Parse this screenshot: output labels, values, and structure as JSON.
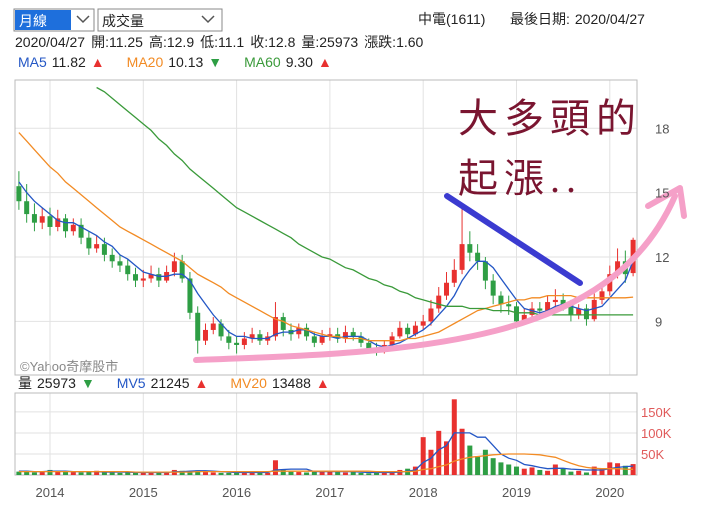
{
  "header": {
    "period_select": "月線",
    "indicator_select": "成交量",
    "stock": "中電(1611)",
    "last_date_label": "最後日期:",
    "last_date": "2020/04/27"
  },
  "info": {
    "date": "2020/04/27",
    "items": [
      {
        "label": "開:",
        "value": 11.25
      },
      {
        "label": "高:",
        "value": 12.9
      },
      {
        "label": "低:",
        "value": 11.1
      },
      {
        "label": "收:",
        "value": 12.8
      },
      {
        "label": "量:",
        "value": 25973
      },
      {
        "label": "漲跌:",
        "value": 1.6,
        "value_label": "1.60"
      }
    ]
  },
  "annotations": {
    "line1": "大多頭的",
    "line2": "起漲..",
    "watermark": "©Yahoo奇摩股市"
  },
  "chart_data": [
    {
      "type": "candlestick",
      "up_color": "#e8312f",
      "down_color": "#2e9e44",
      "ylim": [
        6.5,
        20.25
      ],
      "yticks": [
        9,
        12,
        15,
        18
      ],
      "grid": true,
      "open": [
        15.3,
        14.6,
        14.0,
        13.6,
        13.9,
        13.4,
        13.8,
        13.2,
        13.5,
        12.9,
        12.4,
        12.6,
        12.1,
        11.8,
        11.6,
        11.2,
        10.9,
        11.0,
        11.2,
        10.9,
        11.3,
        11.8,
        11.0,
        9.4,
        8.1,
        8.6,
        8.9,
        8.3,
        8.0,
        7.9,
        8.2,
        8.4,
        8.1,
        8.3,
        9.2,
        8.6,
        8.4,
        8.7,
        8.3,
        8.0,
        8.3,
        8.4,
        8.2,
        8.5,
        8.3,
        8.0,
        7.7,
        7.6,
        7.9,
        8.3,
        8.7,
        8.4,
        8.8,
        9.0,
        9.6,
        10.2,
        10.8,
        11.4,
        12.6,
        12.2,
        11.8,
        10.9,
        10.2,
        9.8,
        9.7,
        9.0,
        9.3,
        9.6,
        9.5,
        9.9,
        10.0,
        9.8,
        9.3,
        9.6,
        9.1,
        10.0,
        10.4,
        11.2,
        11.8,
        11.25
      ],
      "high": [
        16.0,
        15.4,
        14.5,
        14.3,
        14.3,
        14.2,
        14.0,
        13.8,
        13.8,
        13.2,
        13.0,
        12.9,
        12.4,
        12.1,
        11.9,
        11.5,
        11.4,
        11.6,
        11.5,
        11.6,
        12.2,
        12.1,
        11.3,
        9.7,
        8.9,
        9.2,
        9.1,
        8.6,
        8.3,
        8.5,
        8.7,
        8.6,
        8.5,
        9.9,
        9.4,
        8.9,
        8.9,
        8.9,
        8.5,
        8.6,
        8.7,
        8.7,
        8.8,
        8.7,
        8.5,
        8.2,
        8.0,
        8.1,
        8.5,
        9.0,
        8.9,
        9.0,
        9.3,
        10.0,
        10.6,
        11.3,
        11.9,
        14.5,
        13.2,
        12.6,
        12.0,
        11.2,
        10.4,
        10.2,
        9.9,
        9.6,
        9.9,
        9.9,
        10.2,
        10.5,
        10.3,
        10.0,
        9.8,
        9.8,
        10.3,
        10.8,
        11.6,
        12.4,
        12.3,
        12.9
      ],
      "low": [
        14.2,
        13.6,
        13.2,
        13.3,
        13.0,
        13.2,
        12.9,
        13.0,
        12.6,
        12.1,
        12.2,
        11.8,
        11.5,
        11.3,
        10.9,
        10.6,
        10.6,
        10.8,
        10.6,
        10.8,
        11.1,
        10.8,
        9.1,
        7.5,
        7.9,
        8.4,
        8.1,
        7.7,
        7.5,
        7.7,
        8.0,
        7.9,
        7.9,
        8.1,
        8.3,
        8.1,
        8.2,
        8.1,
        7.8,
        7.9,
        8.1,
        8.0,
        8.0,
        8.1,
        7.8,
        7.5,
        7.4,
        7.5,
        7.8,
        8.2,
        8.2,
        8.3,
        8.6,
        8.8,
        9.4,
        10.0,
        10.6,
        11.2,
        11.8,
        11.4,
        10.5,
        9.8,
        9.4,
        9.3,
        8.7,
        8.9,
        9.1,
        9.2,
        9.3,
        9.6,
        9.5,
        9.0,
        9.1,
        8.8,
        9.0,
        9.8,
        10.2,
        11.0,
        10.8,
        11.1
      ],
      "close": [
        14.6,
        14.0,
        13.6,
        13.9,
        13.4,
        13.8,
        13.2,
        13.5,
        12.9,
        12.4,
        12.6,
        12.1,
        11.8,
        11.6,
        11.2,
        10.9,
        11.0,
        11.2,
        10.9,
        11.3,
        11.8,
        11.0,
        9.4,
        8.1,
        8.6,
        8.9,
        8.3,
        8.0,
        7.9,
        8.2,
        8.4,
        8.1,
        8.3,
        9.2,
        8.6,
        8.4,
        8.7,
        8.3,
        8.0,
        8.3,
        8.4,
        8.2,
        8.5,
        8.3,
        8.0,
        7.7,
        7.6,
        7.9,
        8.3,
        8.7,
        8.4,
        8.8,
        9.0,
        9.6,
        10.2,
        10.8,
        11.4,
        12.6,
        12.2,
        11.8,
        10.9,
        10.2,
        9.8,
        9.7,
        9.0,
        9.3,
        9.6,
        9.5,
        9.9,
        10.0,
        9.8,
        9.3,
        9.6,
        9.1,
        10.0,
        10.4,
        11.2,
        11.8,
        11.2,
        12.8
      ],
      "series": [
        {
          "name": "MA5",
          "color": "#2457c5",
          "arrow": "▲",
          "arrow_color": "#e8312f",
          "values": [
            15.5,
            15.0,
            14.6,
            14.3,
            14.0,
            13.7,
            13.6,
            13.6,
            13.4,
            13.2,
            13.0,
            12.7,
            12.5,
            12.1,
            11.9,
            11.6,
            11.3,
            11.2,
            11.1,
            11.1,
            11.2,
            11.2,
            10.9,
            10.3,
            9.8,
            9.3,
            8.9,
            8.5,
            8.3,
            8.3,
            8.2,
            8.2,
            8.2,
            8.4,
            8.5,
            8.5,
            8.6,
            8.6,
            8.4,
            8.3,
            8.3,
            8.2,
            8.3,
            8.3,
            8.3,
            8.1,
            7.9,
            7.8,
            7.9,
            8.0,
            8.2,
            8.4,
            8.6,
            8.9,
            9.3,
            9.7,
            10.2,
            10.9,
            11.4,
            11.8,
            11.8,
            11.5,
            11.0,
            10.5,
            10.0,
            9.6,
            9.5,
            9.4,
            9.5,
            9.7,
            9.8,
            9.7,
            9.6,
            9.5,
            9.6,
            9.7,
            10.1,
            10.5,
            10.9,
            11.82
          ]
        },
        {
          "name": "MA20",
          "color": "#f28b24",
          "arrow": "▼",
          "arrow_color": "#2e9e44",
          "values": [
            17.8,
            17.4,
            17.0,
            16.6,
            16.2,
            15.9,
            15.5,
            15.2,
            14.9,
            14.6,
            14.3,
            14.0,
            13.7,
            13.4,
            13.2,
            13.0,
            12.8,
            12.6,
            12.4,
            12.2,
            12.0,
            11.8,
            11.5,
            11.2,
            11.0,
            10.8,
            10.6,
            10.3,
            10.1,
            9.9,
            9.7,
            9.5,
            9.3,
            9.1,
            9.0,
            8.8,
            8.7,
            8.6,
            8.5,
            8.4,
            8.3,
            8.3,
            8.2,
            8.2,
            8.2,
            8.1,
            8.1,
            8.1,
            8.1,
            8.1,
            8.2,
            8.2,
            8.3,
            8.4,
            8.5,
            8.7,
            8.9,
            9.1,
            9.3,
            9.5,
            9.6,
            9.7,
            9.8,
            9.9,
            10.0,
            10.0,
            10.1,
            10.1,
            10.2,
            10.2,
            10.2,
            10.2,
            10.1,
            10.1,
            10.1,
            10.1,
            10.1,
            10.1,
            10.1,
            10.13
          ]
        },
        {
          "name": "MA60",
          "color": "#3a9a3a",
          "arrow": "▲",
          "arrow_color": "#e8312f",
          "last_label": "9.30",
          "values": [
            null,
            null,
            null,
            null,
            null,
            null,
            null,
            null,
            null,
            null,
            19.9,
            19.7,
            19.4,
            19.1,
            18.8,
            18.5,
            18.2,
            17.9,
            17.5,
            17.2,
            16.8,
            16.5,
            16.1,
            15.8,
            15.5,
            15.2,
            14.9,
            14.6,
            14.3,
            14.1,
            13.9,
            13.7,
            13.5,
            13.3,
            13.1,
            12.9,
            12.6,
            12.4,
            12.2,
            12.0,
            11.9,
            11.7,
            11.5,
            11.4,
            11.2,
            11.0,
            10.9,
            10.7,
            10.6,
            10.4,
            10.3,
            10.1,
            10.0,
            9.9,
            9.8,
            9.7,
            9.7,
            9.7,
            9.6,
            9.6,
            9.6,
            9.5,
            9.5,
            9.5,
            9.4,
            9.4,
            9.4,
            9.3,
            9.3,
            9.3,
            9.3,
            9.3,
            9.3,
            9.3,
            9.3,
            9.3,
            9.3,
            9.3,
            9.3,
            9.3
          ]
        }
      ]
    },
    {
      "type": "bar",
      "ylim": [
        0,
        195000
      ],
      "yticks": [
        {
          "value": 50000,
          "label": "50K"
        },
        {
          "value": 100000,
          "label": "100K"
        },
        {
          "value": 150000,
          "label": "150K"
        }
      ],
      "tick_color": "#e05a5a",
      "grid": true,
      "categories": [
        null,
        null,
        null,
        null,
        "2014",
        null,
        null,
        null,
        null,
        null,
        null,
        null,
        null,
        null,
        null,
        null,
        "2015",
        null,
        null,
        null,
        null,
        null,
        null,
        null,
        null,
        null,
        null,
        null,
        "2016",
        null,
        null,
        null,
        null,
        null,
        null,
        null,
        null,
        null,
        null,
        null,
        "2017",
        null,
        null,
        null,
        null,
        null,
        null,
        null,
        null,
        null,
        null,
        null,
        "2018",
        null,
        null,
        null,
        null,
        null,
        null,
        null,
        null,
        null,
        null,
        null,
        "2019",
        null,
        null,
        null,
        null,
        null,
        null,
        null,
        null,
        null,
        null,
        null,
        "2020",
        null,
        null,
        null
      ],
      "series": [
        {
          "name": "量",
          "arrow": "▼",
          "arrow_color": "#2e9e44",
          "values": [
            8000,
            10000,
            6000,
            7000,
            12000,
            9000,
            8000,
            7000,
            6000,
            8000,
            10000,
            6000,
            7000,
            5000,
            6000,
            5000,
            6000,
            5000,
            7000,
            8000,
            12000,
            10000,
            9000,
            11000,
            7000,
            6000,
            5000,
            5000,
            6000,
            7000,
            8000,
            6000,
            5000,
            35000,
            12000,
            8000,
            7000,
            6000,
            8000,
            10000,
            9000,
            7000,
            6000,
            8000,
            5000,
            4000,
            5000,
            6000,
            8000,
            12000,
            15000,
            20000,
            90000,
            60000,
            105000,
            80000,
            180000,
            110000,
            70000,
            45000,
            60000,
            40000,
            30000,
            25000,
            20000,
            15000,
            18000,
            12000,
            10000,
            25000,
            15000,
            8000,
            10000,
            6000,
            20000,
            15000,
            30000,
            28000,
            22000,
            25973
          ]
        },
        {
          "name": "MV5",
          "color": "#2457c5",
          "arrow": "▲",
          "arrow_color": "#e8312f",
          "values": [
            9000,
            9000,
            8000,
            8000,
            9000,
            9000,
            9000,
            8000,
            8000,
            8000,
            8000,
            7000,
            7000,
            7000,
            7000,
            6000,
            6000,
            6000,
            6000,
            6000,
            8000,
            8000,
            9000,
            10000,
            10000,
            9000,
            8000,
            7000,
            6000,
            6000,
            6000,
            6000,
            6000,
            12000,
            13000,
            14000,
            14000,
            14000,
            8000,
            8000,
            8000,
            8000,
            8000,
            8000,
            7000,
            6000,
            6000,
            6000,
            6000,
            7000,
            9000,
            12000,
            30000,
            40000,
            60000,
            70000,
            100000,
            100000,
            100000,
            90000,
            90000,
            70000,
            50000,
            40000,
            35000,
            25000,
            22000,
            18000,
            15000,
            16000,
            16000,
            14000,
            13000,
            12000,
            12000,
            12000,
            15000,
            18000,
            20000,
            21245
          ]
        },
        {
          "name": "MV20",
          "color": "#f28b24",
          "arrow": "▲",
          "arrow_color": "#e8312f",
          "values": [
            8000,
            8000,
            8000,
            8000,
            8000,
            8000,
            8000,
            8000,
            8000,
            8000,
            8000,
            8000,
            8000,
            8000,
            8000,
            7000,
            7000,
            7000,
            7000,
            7000,
            7000,
            7000,
            7000,
            8000,
            8000,
            8000,
            8000,
            8000,
            8000,
            8000,
            8000,
            8000,
            8000,
            9000,
            9000,
            9000,
            9000,
            9000,
            9000,
            9000,
            9000,
            9000,
            9000,
            9000,
            9000,
            9000,
            8000,
            8000,
            8000,
            8000,
            8000,
            9000,
            13000,
            15000,
            20000,
            24000,
            33000,
            38000,
            42000,
            44000,
            46000,
            48000,
            49000,
            50000,
            50000,
            50000,
            49000,
            48000,
            45000,
            42000,
            35000,
            28000,
            22000,
            18000,
            16000,
            15000,
            15000,
            15000,
            14000,
            13488
          ]
        }
      ]
    }
  ]
}
